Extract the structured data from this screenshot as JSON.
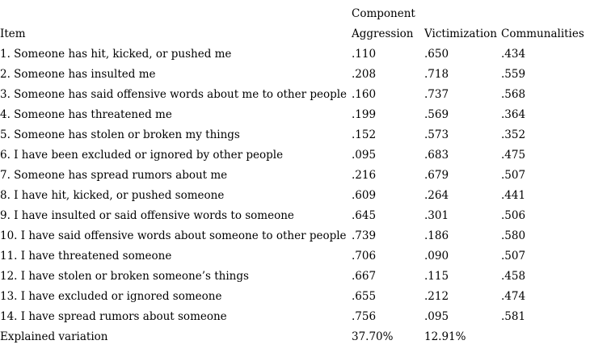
{
  "colors": {
    "text": "#000000",
    "background": "#ffffff"
  },
  "table": {
    "component_header": "Component",
    "columns": {
      "item": "Item",
      "aggression": "Aggression",
      "victimization": "Victimization",
      "communalities": "Communalities"
    },
    "rows": [
      {
        "item": "1. Someone has hit, kicked, or pushed me",
        "aggression": ".110",
        "victimization": ".650",
        "communalities": ".434"
      },
      {
        "item": "2. Someone has insulted me",
        "aggression": ".208",
        "victimization": ".718",
        "communalities": ".559"
      },
      {
        "item": "3. Someone has said offensive words about me to other people",
        "aggression": ".160",
        "victimization": ".737",
        "communalities": ".568"
      },
      {
        "item": "4. Someone has threatened me",
        "aggression": ".199",
        "victimization": ".569",
        "communalities": ".364"
      },
      {
        "item": "5. Someone has stolen or broken my things",
        "aggression": ".152",
        "victimization": ".573",
        "communalities": ".352"
      },
      {
        "item": "6. I have been excluded or ignored by other people",
        "aggression": ".095",
        "victimization": ".683",
        "communalities": ".475"
      },
      {
        "item": "7. Someone has spread rumors about me",
        "aggression": ".216",
        "victimization": ".679",
        "communalities": ".507"
      },
      {
        "item": "8. I have hit, kicked, or pushed someone",
        "aggression": ".609",
        "victimization": ".264",
        "communalities": ".441"
      },
      {
        "item": "9. I have insulted or said offensive words to someone",
        "aggression": ".645",
        "victimization": ".301",
        "communalities": ".506"
      },
      {
        "item": "10. I have said offensive words about someone to other people",
        "aggression": ".739",
        "victimization": ".186",
        "communalities": ".580"
      },
      {
        "item": "11. I have threatened someone",
        "aggression": ".706",
        "victimization": ".090",
        "communalities": ".507"
      },
      {
        "item": "12. I have stolen or broken someone’s things",
        "aggression": ".667",
        "victimization": ".115",
        "communalities": ".458"
      },
      {
        "item": "13. I have excluded or ignored someone",
        "aggression": ".655",
        "victimization": ".212",
        "communalities": ".474"
      },
      {
        "item": "14. I have spread rumors about someone",
        "aggression": ".756",
        "victimization": ".095",
        "communalities": ".581"
      }
    ],
    "footer": {
      "label": "Explained variation",
      "aggression": "37.70%",
      "victimization": "12.91%",
      "communalities": ""
    }
  }
}
